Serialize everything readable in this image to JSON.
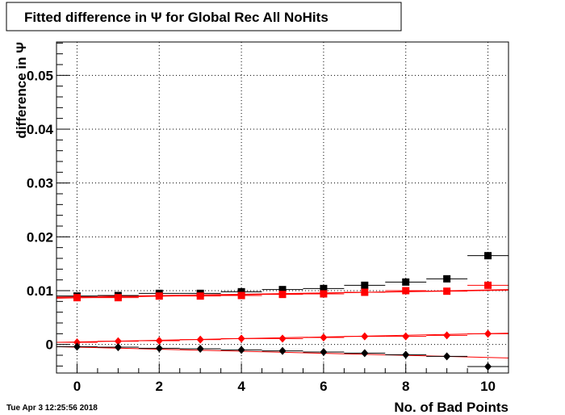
{
  "timestamp": "Tue Apr  3 12:25:56 2018",
  "colors": {
    "black_series": "#000000",
    "red_series": "#ff0000"
  },
  "chart_data": {
    "type": "scatter",
    "title": "Fitted difference in  Ψ  for Global Rec All NoHits",
    "xlabel": "No. of Bad Points",
    "ylabel": "difference in  Ψ",
    "xlim": [
      -0.5,
      10.5
    ],
    "ylim": [
      -0.0053,
      0.0562
    ],
    "xticks": [
      0,
      2,
      4,
      6,
      8,
      10
    ],
    "xtick_labels": [
      "0",
      "2",
      "4",
      "6",
      "8",
      "10"
    ],
    "yticks": [
      0,
      0.01,
      0.02,
      0.03,
      0.04,
      0.05
    ],
    "ytick_labels": [
      "0",
      "0.01",
      "0.02",
      "0.03",
      "0.04",
      "0.05"
    ],
    "grid": true,
    "series": [
      {
        "marker": "square",
        "color": "#000000",
        "fit_line": [
          0.0088,
          0.0101
        ],
        "x": [
          0,
          1,
          2,
          3,
          4,
          5,
          6,
          7,
          8,
          9,
          10
        ],
        "y": [
          0.009,
          0.0091,
          0.0095,
          0.0095,
          0.0098,
          0.0102,
          0.0104,
          0.011,
          0.0116,
          0.0122,
          0.0165
        ]
      },
      {
        "marker": "square",
        "color": "#ff0000",
        "fit_line": [
          0.0086,
          0.0102
        ],
        "x": [
          0,
          1,
          2,
          3,
          4,
          5,
          6,
          7,
          8,
          9,
          10
        ],
        "y": [
          0.0087,
          0.0087,
          0.009,
          0.009,
          0.0091,
          0.0093,
          0.0094,
          0.0097,
          0.01,
          0.0099,
          0.011
        ]
      },
      {
        "marker": "diamond",
        "color": "#ff0000",
        "fit_line": [
          0.0004,
          0.0021
        ],
        "x": [
          0,
          1,
          2,
          3,
          4,
          5,
          6,
          7,
          8,
          9,
          10
        ],
        "y": [
          0.0004,
          0.0006,
          0.0007,
          0.0009,
          0.0011,
          0.0011,
          0.0013,
          0.0015,
          0.0015,
          0.0017,
          0.002
        ]
      },
      {
        "marker": "diamond",
        "color": "#000000",
        "fit_line": [
          -0.0004,
          -0.0025
        ],
        "x": [
          0,
          1,
          2,
          3,
          4,
          5,
          6,
          7,
          8,
          9,
          10
        ],
        "y": [
          -0.0004,
          -0.0005,
          -0.0007,
          -0.0008,
          -0.001,
          -0.0012,
          -0.0014,
          -0.0016,
          -0.0019,
          -0.0022,
          -0.0041
        ]
      }
    ]
  }
}
